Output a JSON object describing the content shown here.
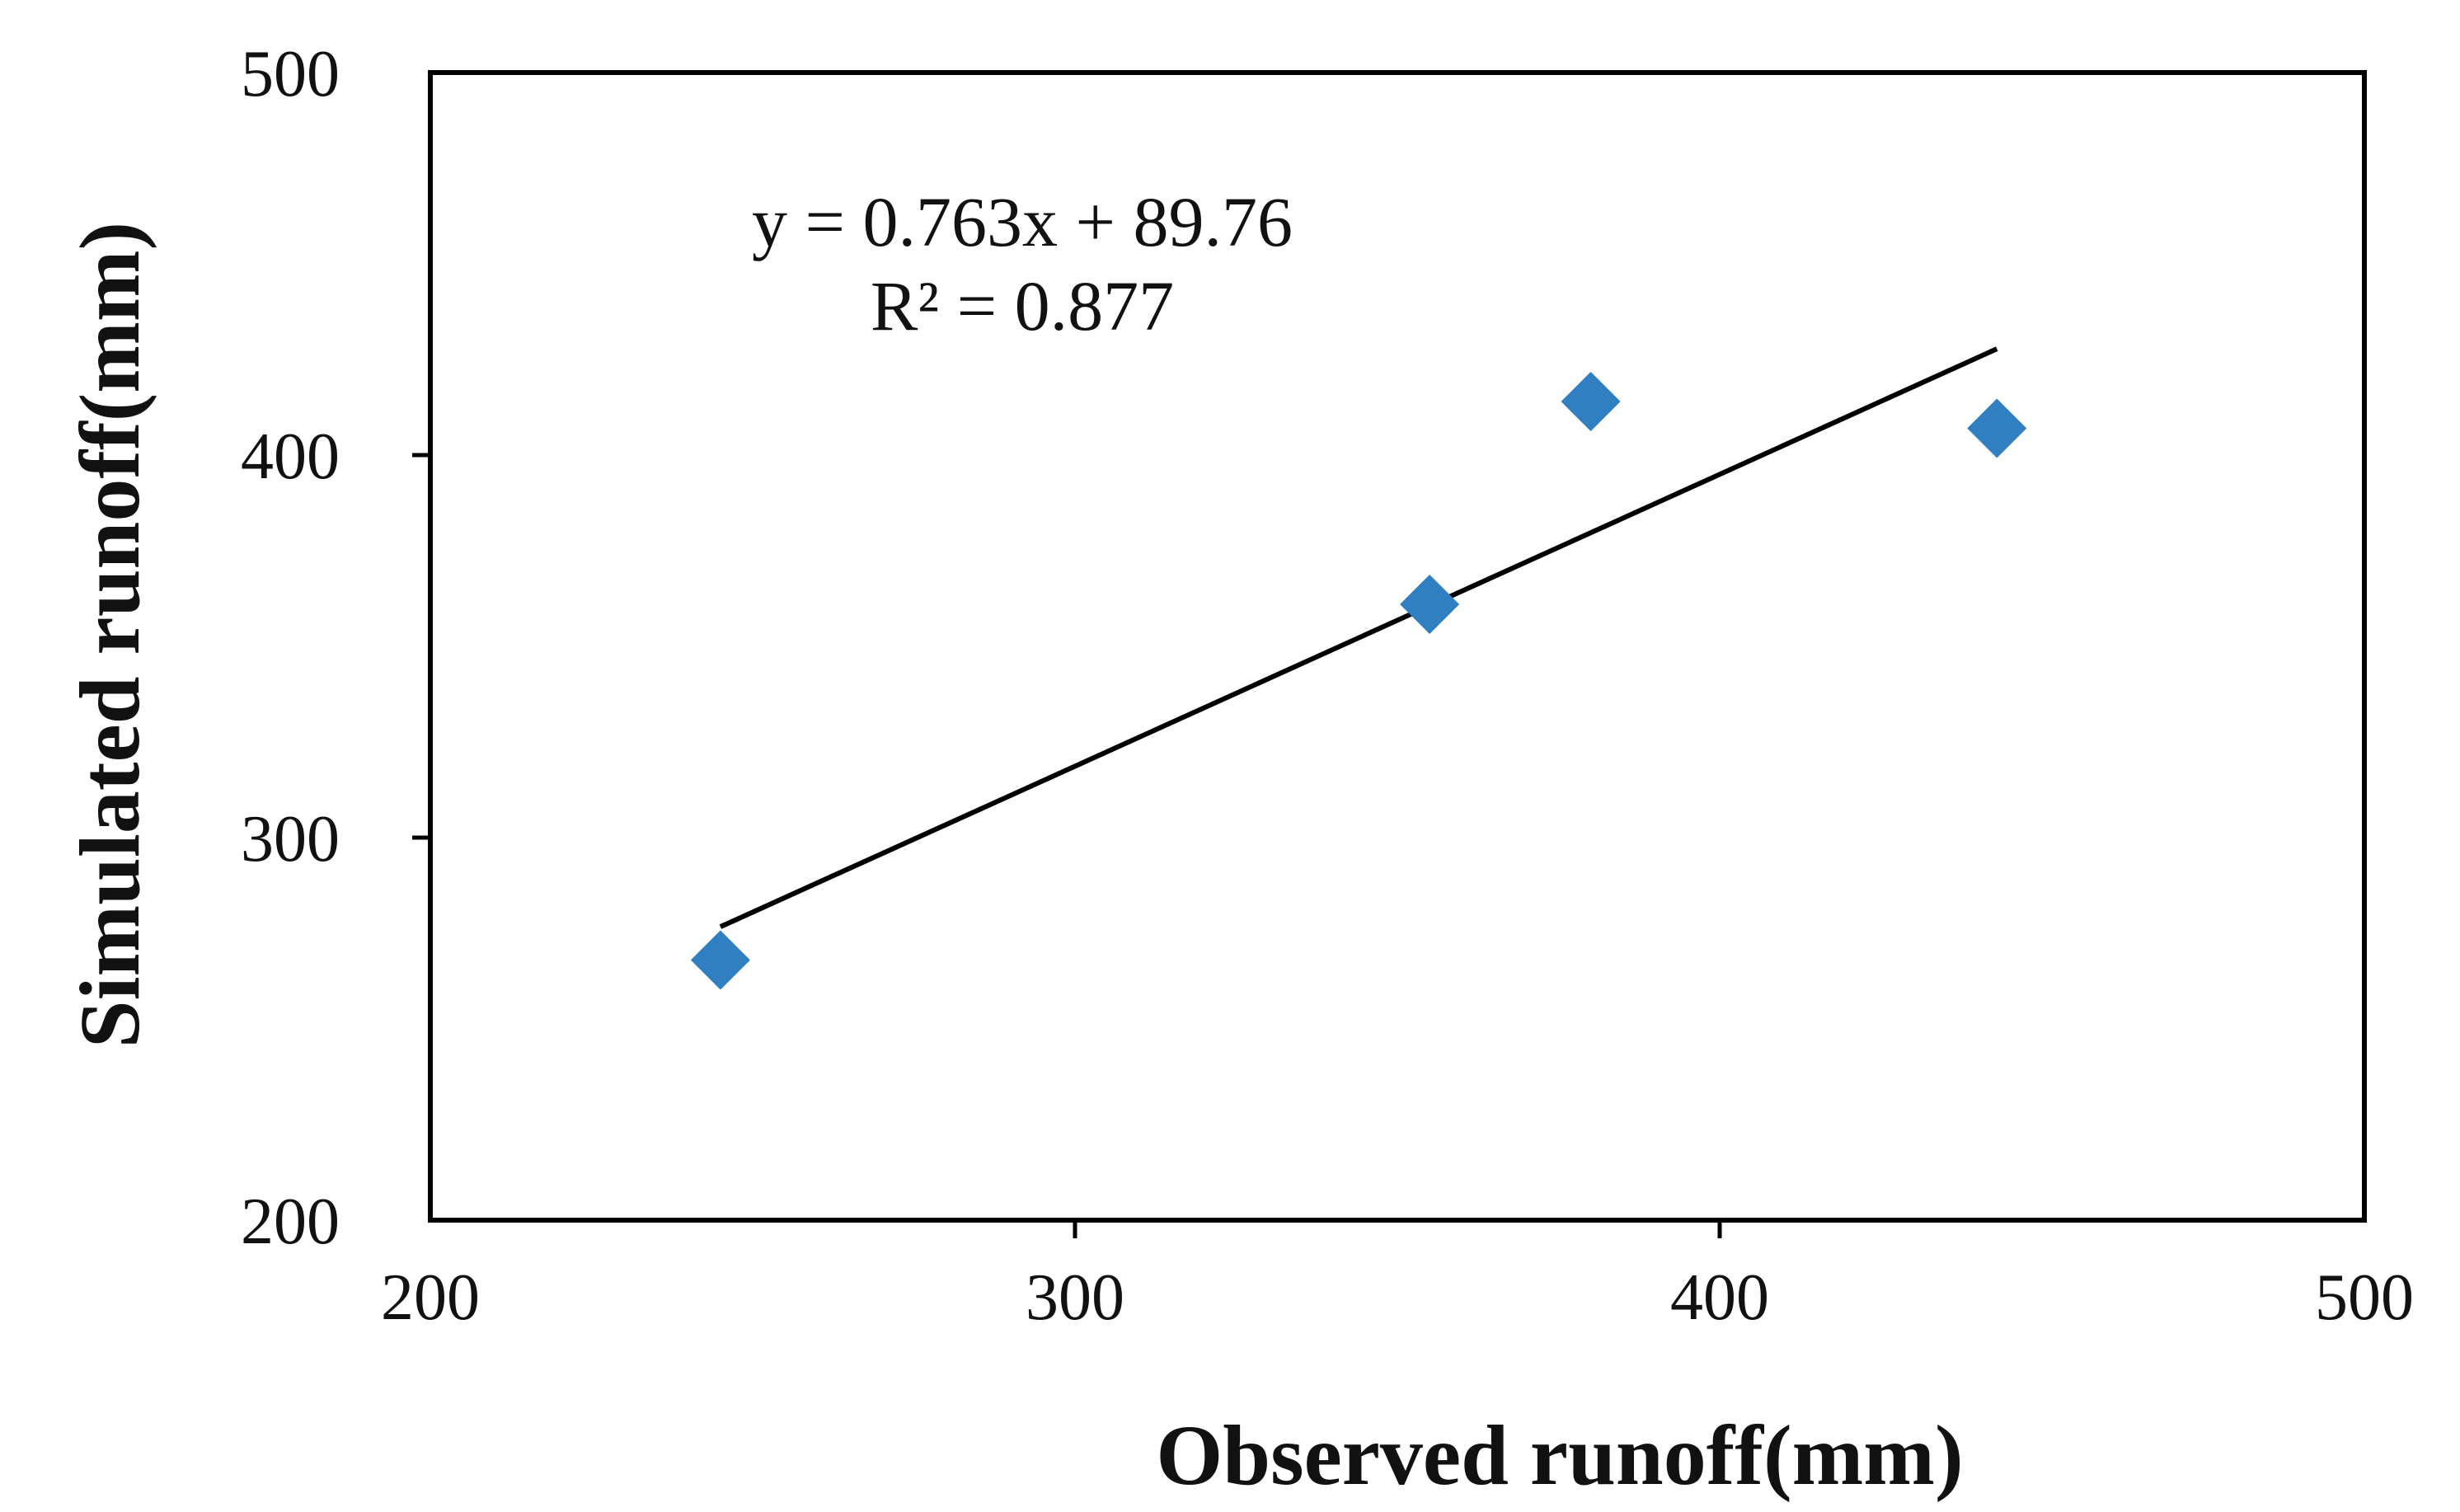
{
  "chart_data": {
    "type": "scatter",
    "xlabel": "Observed runoff(mm)",
    "ylabel": "Simulated runoff(mm)",
    "xlim": [
      200,
      500
    ],
    "ylim": [
      200,
      500
    ],
    "xticks": [
      200,
      300,
      400,
      500
    ],
    "yticks": [
      200,
      300,
      400,
      500
    ],
    "grid": false,
    "marker": "diamond",
    "marker_color": "#2f7fc1",
    "trendline_color": "#000000",
    "series": [
      {
        "points": [
          {
            "x": 245,
            "y": 268
          },
          {
            "x": 355,
            "y": 361
          },
          {
            "x": 380,
            "y": 414
          },
          {
            "x": 443,
            "y": 407
          }
        ]
      }
    ],
    "trendline": {
      "slope": 0.763,
      "intercept": 89.76,
      "x_range": [
        245,
        443
      ]
    },
    "annotations": {
      "equation": "y = 0.763x + 89.76",
      "r_squared": "R² = 0.877"
    }
  }
}
